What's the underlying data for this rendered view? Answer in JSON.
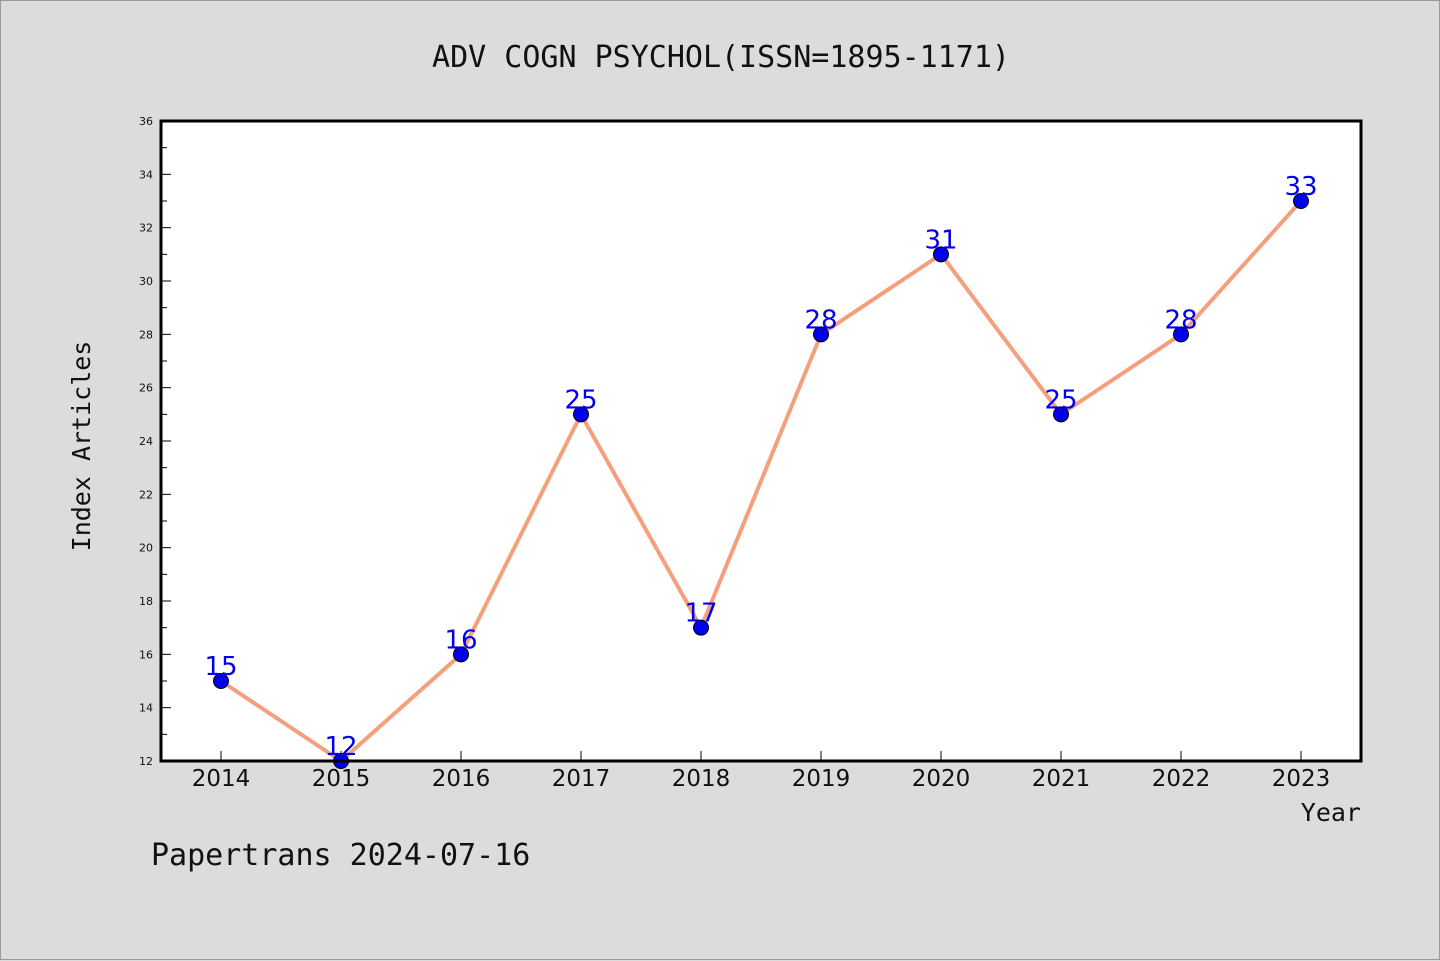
{
  "chart_data": {
    "type": "line",
    "title": "ADV COGN PSYCHOL(ISSN=1895-1171)",
    "xlabel": "Year",
    "ylabel": "Index Articles",
    "categories": [
      "2014",
      "2015",
      "2016",
      "2017",
      "2018",
      "2019",
      "2020",
      "2021",
      "2022",
      "2023"
    ],
    "series": [
      {
        "values": [
          15,
          12,
          16,
          25,
          17,
          28,
          31,
          25,
          28,
          33
        ]
      }
    ],
    "data_labels": [
      "15",
      "12",
      "16",
      "25",
      "17",
      "28",
      "31",
      "25",
      "28",
      "33"
    ],
    "ylim": [
      12,
      36
    ],
    "yticks": [
      "12",
      "14",
      "16",
      "18",
      "20",
      "22",
      "24",
      "26",
      "28",
      "30",
      "32",
      "34",
      "36"
    ],
    "grid": false,
    "colors": {
      "line": "#f4a07c",
      "marker": "#0000ee",
      "label": "#0000ee",
      "background": "#dcdcdc",
      "plot_area": "#ffffff"
    }
  },
  "footer": {
    "text": "Papertrans 2024-07-16"
  }
}
